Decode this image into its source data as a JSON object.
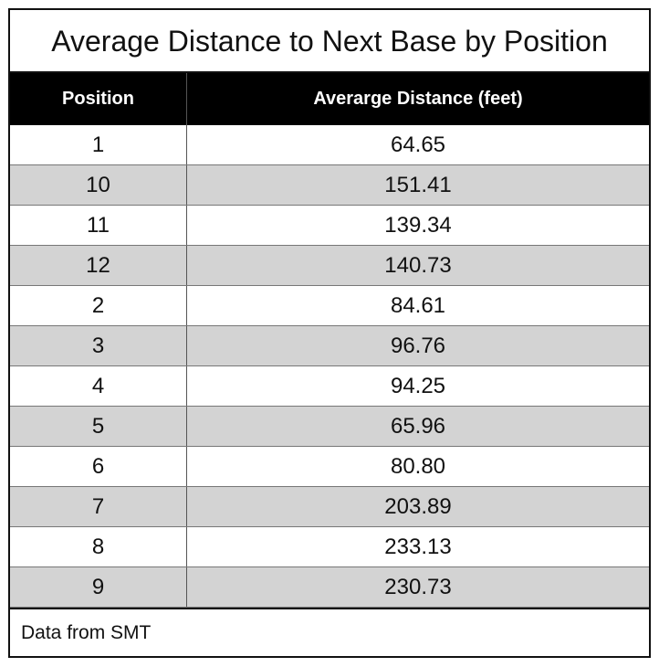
{
  "chart_data": {
    "type": "table",
    "title": "Average Distance to Next Base by Position",
    "columns": [
      "Position",
      "Averarge Distance (feet)"
    ],
    "rows": [
      [
        "1",
        "64.65"
      ],
      [
        "10",
        "151.41"
      ],
      [
        "11",
        "139.34"
      ],
      [
        "12",
        "140.73"
      ],
      [
        "2",
        "84.61"
      ],
      [
        "3",
        "96.76"
      ],
      [
        "4",
        "94.25"
      ],
      [
        "5",
        "65.96"
      ],
      [
        "6",
        "80.80"
      ],
      [
        "7",
        "203.89"
      ],
      [
        "8",
        "233.13"
      ],
      [
        "9",
        "230.73"
      ]
    ],
    "footnote": "Data from SMT"
  },
  "colors": {
    "header_bg": "#000000",
    "header_text": "#ffffff",
    "row_alt_bg": "#d3d3d3",
    "border": "#111111"
  }
}
